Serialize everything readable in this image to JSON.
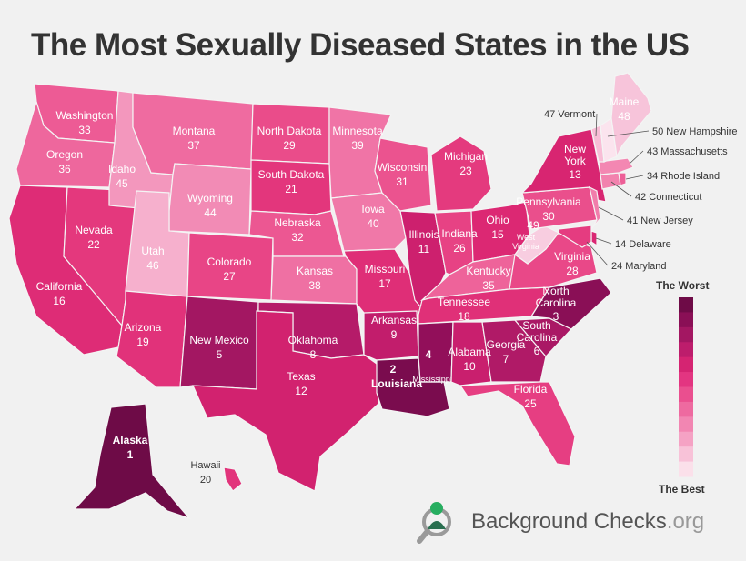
{
  "title": "The Most Sexually Diseased States in the US",
  "legend": {
    "top_label": "The Worst",
    "bottom_label": "The Best",
    "scale_colors": [
      "#6e0b47",
      "#8a0f56",
      "#a31762",
      "#bd1d6c",
      "#d52472",
      "#e33581",
      "#ea4f8f",
      "#ee6aa0",
      "#f286b2",
      "#f5a2c4",
      "#f8c2d8",
      "#fbe0ea"
    ]
  },
  "brand": {
    "name": "Background Checks",
    "suffix": ".org"
  },
  "states": {
    "WA": {
      "name": "Washington",
      "rank": "33"
    },
    "OR": {
      "name": "Oregon",
      "rank": "36"
    },
    "CA": {
      "name": "California",
      "rank": "16"
    },
    "NV": {
      "name": "Nevada",
      "rank": "22"
    },
    "ID": {
      "name": "Idaho",
      "rank": "45"
    },
    "MT": {
      "name": "Montana",
      "rank": "37"
    },
    "WY": {
      "name": "Wyoming",
      "rank": "44"
    },
    "UT": {
      "name": "Utah",
      "rank": "46"
    },
    "AZ": {
      "name": "Arizona",
      "rank": "19"
    },
    "CO": {
      "name": "Colorado",
      "rank": "27"
    },
    "NM": {
      "name": "New Mexico",
      "rank": "5"
    },
    "ND": {
      "name": "North Dakota",
      "rank": "29"
    },
    "SD": {
      "name": "South Dakota",
      "rank": "21"
    },
    "NE": {
      "name": "Nebraska",
      "rank": "32"
    },
    "KS": {
      "name": "Kansas",
      "rank": "38"
    },
    "OK": {
      "name": "Oklahoma",
      "rank": "8"
    },
    "TX": {
      "name": "Texas",
      "rank": "12"
    },
    "MN": {
      "name": "Minnesota",
      "rank": "39"
    },
    "IA": {
      "name": "Iowa",
      "rank": "40"
    },
    "MO": {
      "name": "Missouri",
      "rank": "17"
    },
    "AR": {
      "name": "Arkansas",
      "rank": "9"
    },
    "LA": {
      "name": "Louisiana",
      "rank": "2"
    },
    "WI": {
      "name": "Wisconsin",
      "rank": "31"
    },
    "IL": {
      "name": "Illinois",
      "rank": "11"
    },
    "MI": {
      "name": "Michigan",
      "rank": "23"
    },
    "IN": {
      "name": "Indiana",
      "rank": "26"
    },
    "OH": {
      "name": "Ohio",
      "rank": "15"
    },
    "KY": {
      "name": "Kentucky",
      "rank": "35"
    },
    "TN": {
      "name": "Tennessee",
      "rank": "18"
    },
    "MS": {
      "name": "Mississippi",
      "rank": "4"
    },
    "AL": {
      "name": "Alabama",
      "rank": "10"
    },
    "GA": {
      "name": "Georgia",
      "rank": "7"
    },
    "FL": {
      "name": "Florida",
      "rank": "25"
    },
    "SC": {
      "name": "South Carolina",
      "name_l1": "South",
      "name_l2": "Carolina",
      "rank": "6"
    },
    "NC": {
      "name": "North Carolina",
      "name_l1": "North",
      "name_l2": "Carolina",
      "rank": "3"
    },
    "VA": {
      "name": "Virginia",
      "rank": "28"
    },
    "WV": {
      "name": "West Virginia",
      "name_l1": "West",
      "name_l2": "Virginia",
      "rank": "49"
    },
    "PA": {
      "name": "Pennsylvania",
      "rank": "30"
    },
    "NY": {
      "name": "New York",
      "name_l1": "New",
      "name_l2": "York",
      "rank": "13"
    },
    "ME": {
      "name": "Maine",
      "rank": "48"
    },
    "AK": {
      "name": "Alaska",
      "rank": "1"
    },
    "HI": {
      "name": "Hawaii",
      "rank": "20"
    }
  },
  "callouts": {
    "VT": "47 Vermont",
    "NH": "50 New Hampshire",
    "MA": "43 Massachusetts",
    "RI": "34 Rhode Island",
    "CT": "42 Connecticut",
    "NJ": "41 New Jersey",
    "DE": "14 Delaware",
    "MD": "24 Maryland"
  },
  "colors": {
    "r1": "#6e0b47",
    "r2": "#7a0c4e",
    "r3": "#8a0f56",
    "r4": "#920f5a",
    "r5": "#a31762",
    "r6": "#aa1865",
    "r7": "#b01a67",
    "r8": "#b51b69",
    "r9": "#c21d6c",
    "r10": "#c91f6e",
    "r11": "#cd206e",
    "r12": "#d2226f",
    "r13": "#d82571",
    "r14": "#da2773",
    "r15": "#dc2873",
    "r16": "#de2c76",
    "r17": "#df2e77",
    "r18": "#e03078",
    "r19": "#e1327a",
    "r20": "#e2347b",
    "r21": "#e3367c",
    "r22": "#e4387d",
    "r23": "#e43a7e",
    "r24": "#e53c80",
    "r25": "#e63e82",
    "r26": "#e74284",
    "r27": "#e84586",
    "r28": "#e94888",
    "r29": "#ea4c8a",
    "r30": "#ea4f8c",
    "r31": "#eb538f",
    "r32": "#ec5792",
    "r33": "#ed5b95",
    "r34": "#ed5f97",
    "r35": "#ee639a",
    "r36": "#ee679d",
    "r37": "#ef6ba0",
    "r38": "#ef70a3",
    "r39": "#f074a6",
    "r40": "#f078a8",
    "r41": "#f17dab",
    "r42": "#f282ae",
    "r43": "#f387b2",
    "r44": "#f28bb5",
    "r45": "#f397bd",
    "r46": "#f6b0cd",
    "r47": "#f8bdd6",
    "r48": "#f7c4da",
    "r49": "#f8cde0",
    "r50": "#fbe4ee"
  }
}
